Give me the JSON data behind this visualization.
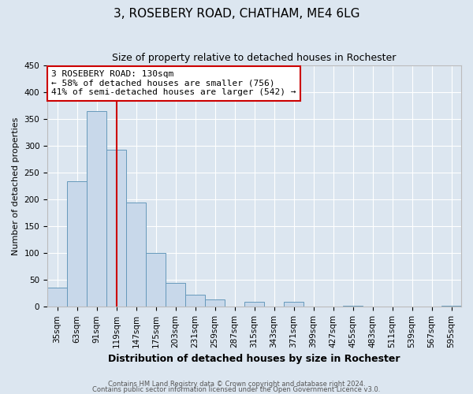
{
  "title": "3, ROSEBERY ROAD, CHATHAM, ME4 6LG",
  "subtitle": "Size of property relative to detached houses in Rochester",
  "xlabel": "Distribution of detached houses by size in Rochester",
  "ylabel": "Number of detached properties",
  "bar_labels": [
    "35sqm",
    "63sqm",
    "91sqm",
    "119sqm",
    "147sqm",
    "175sqm",
    "203sqm",
    "231sqm",
    "259sqm",
    "287sqm",
    "315sqm",
    "343sqm",
    "371sqm",
    "399sqm",
    "427sqm",
    "455sqm",
    "483sqm",
    "511sqm",
    "539sqm",
    "567sqm",
    "595sqm"
  ],
  "bar_values": [
    35,
    234,
    365,
    293,
    195,
    101,
    44,
    22,
    14,
    0,
    10,
    0,
    9,
    0,
    0,
    2,
    0,
    0,
    0,
    0,
    2
  ],
  "bar_color": "#c8d8ea",
  "bar_edge_color": "#6699bb",
  "vline_x_index": 3,
  "vline_color": "#cc0000",
  "annotation_text": "3 ROSEBERY ROAD: 130sqm\n← 58% of detached houses are smaller (756)\n41% of semi-detached houses are larger (542) →",
  "annotation_box_facecolor": "#ffffff",
  "annotation_box_edgecolor": "#cc0000",
  "ylim": [
    0,
    450
  ],
  "yticks": [
    0,
    50,
    100,
    150,
    200,
    250,
    300,
    350,
    400,
    450
  ],
  "fig_facecolor": "#dce6f0",
  "plot_facecolor": "#dce6f0",
  "footer_line1": "Contains HM Land Registry data © Crown copyright and database right 2024.",
  "footer_line2": "Contains public sector information licensed under the Open Government Licence v3.0.",
  "title_fontsize": 11,
  "subtitle_fontsize": 9,
  "ylabel_fontsize": 8,
  "xlabel_fontsize": 9,
  "tick_fontsize": 7.5,
  "annotation_fontsize": 8
}
